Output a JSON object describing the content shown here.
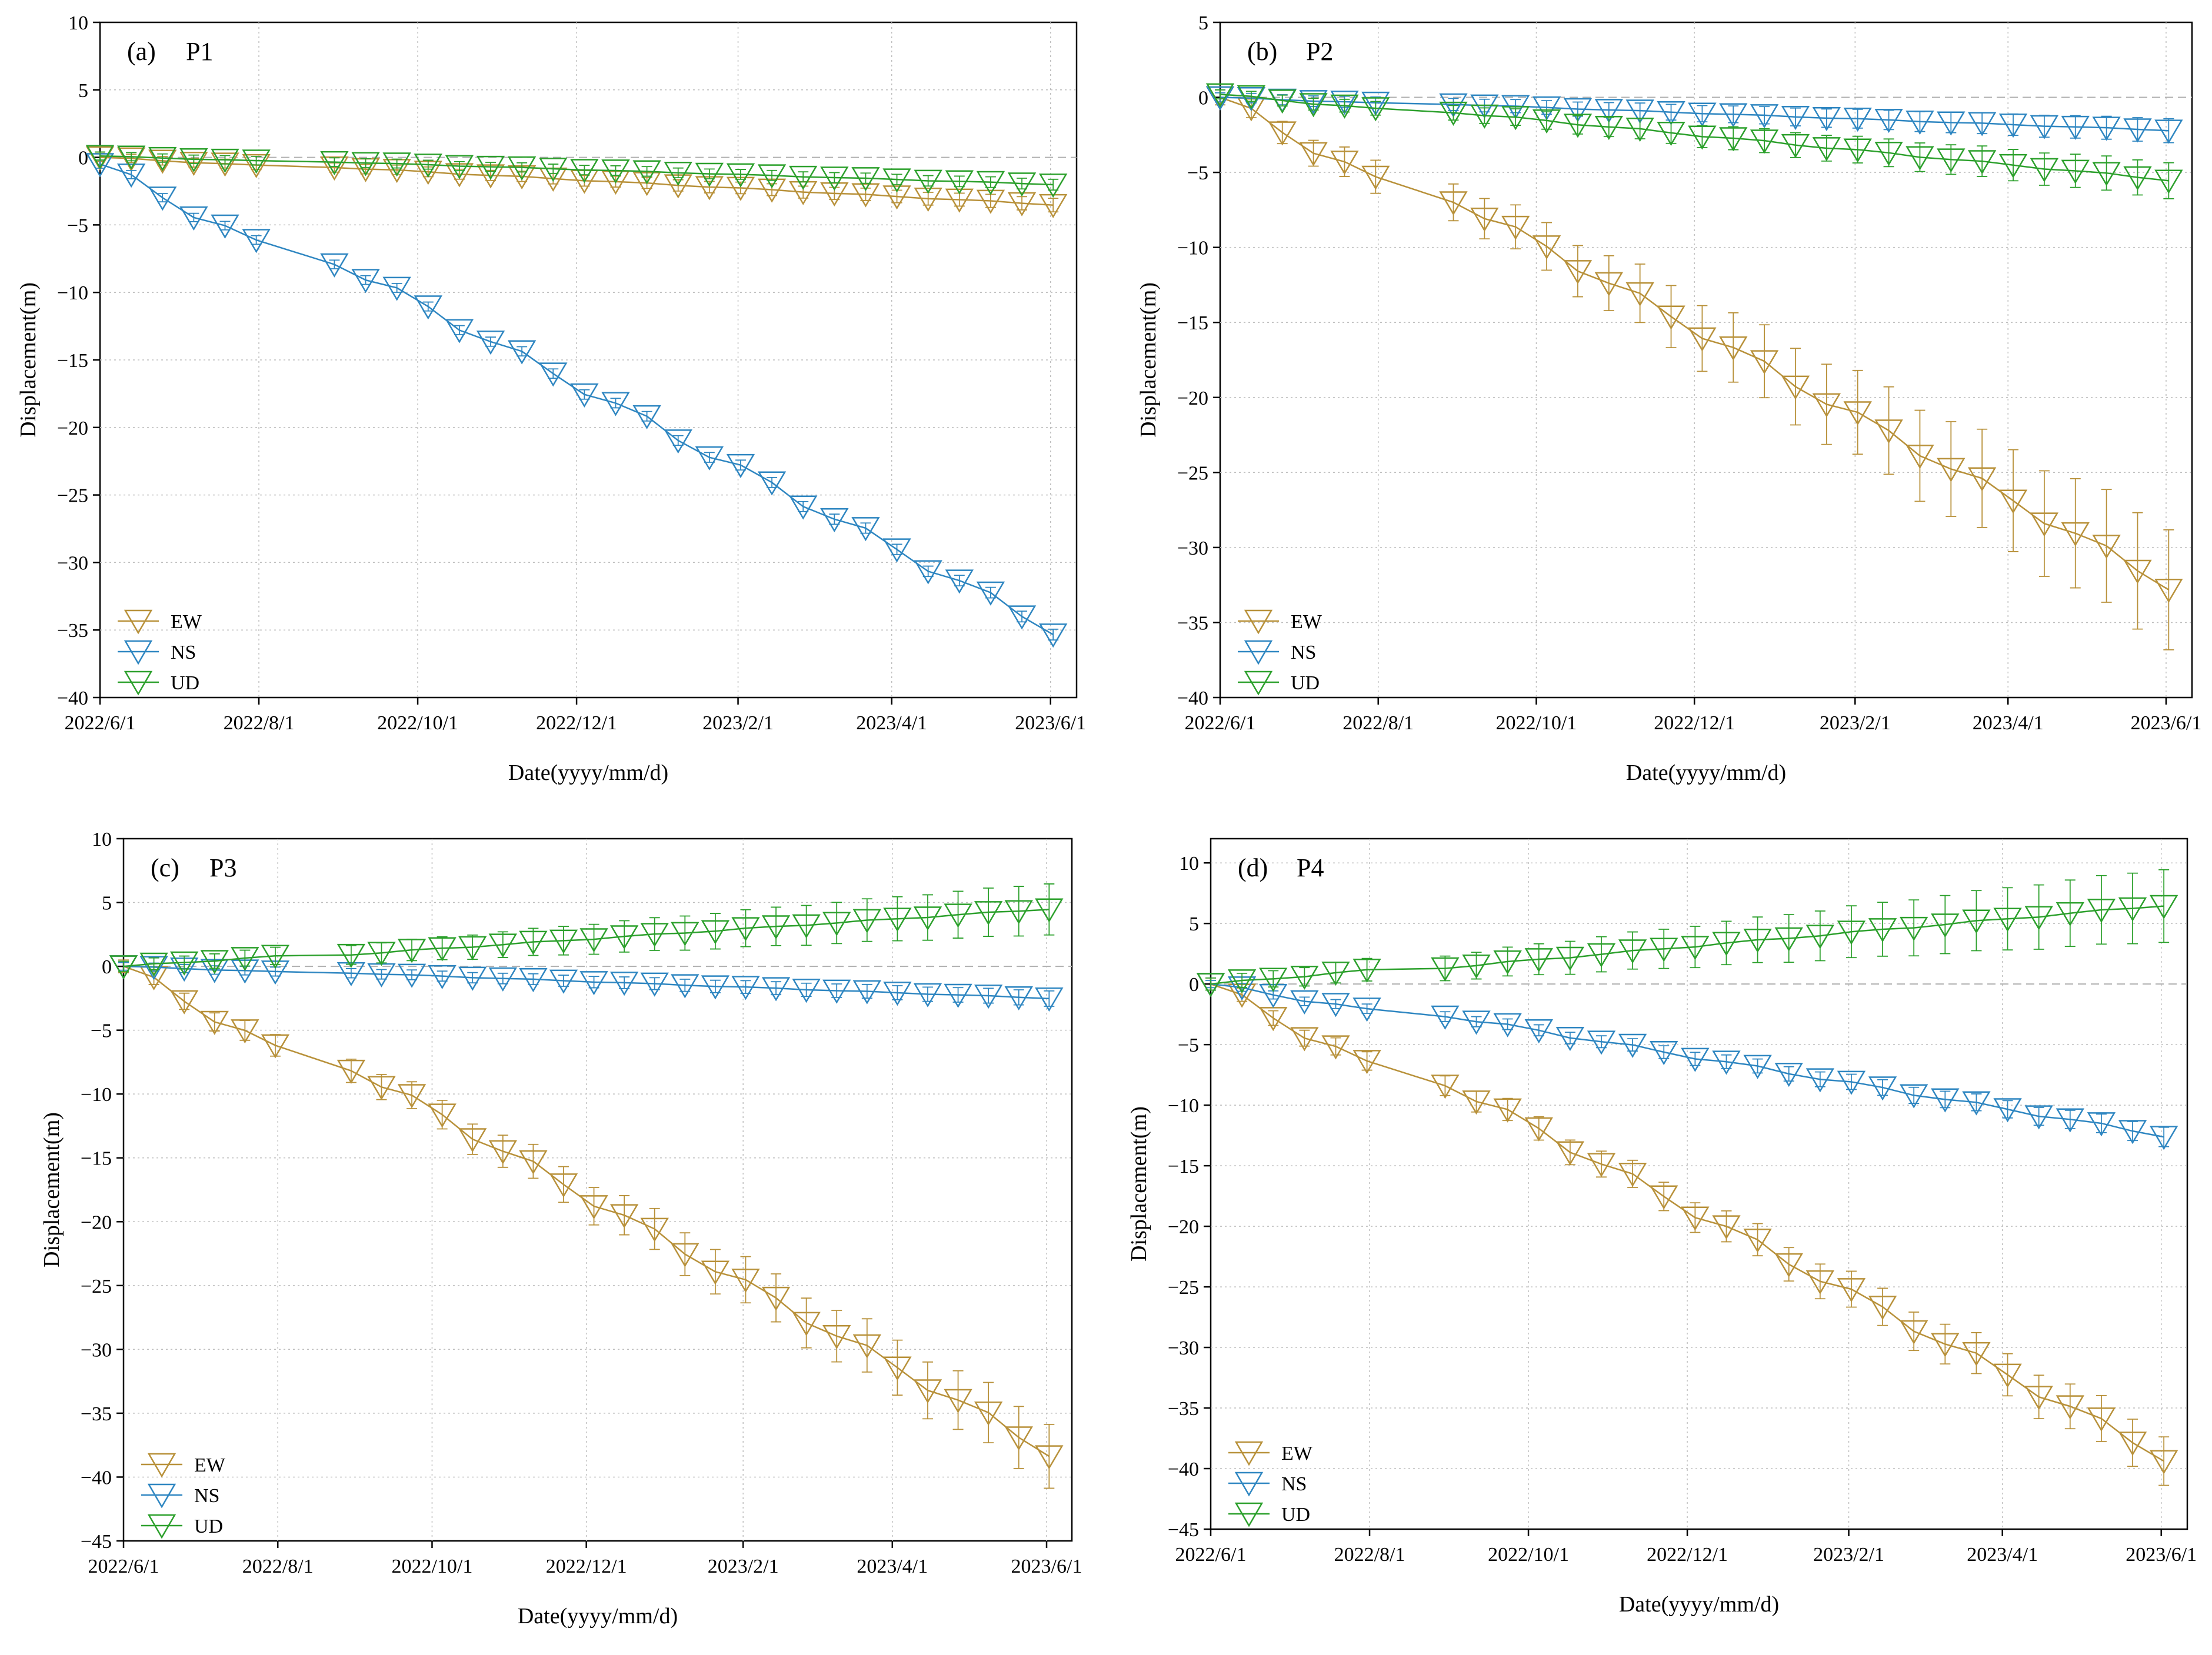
{
  "colors": {
    "EW": "#b8913a",
    "NS": "#2e86c1",
    "UD": "#2ca02c",
    "zero_line": "#b0b0b0",
    "grid": "#bfbfbf"
  },
  "chart_data": [
    {
      "type": "line",
      "panel": "(a)",
      "title": "P1",
      "xlabel": "Date(yyyy/mm/d)",
      "ylabel": "Displacement(m)",
      "x_ticks": [
        "2022/6/1",
        "2022/8/1",
        "2022/10/1",
        "2022/12/1",
        "2023/2/1",
        "2023/4/1",
        "2023/6/1"
      ],
      "ylim": [
        -40,
        10
      ],
      "y_ticks": [
        10,
        5,
        0,
        -5,
        -10,
        -15,
        -20,
        -25,
        -30,
        -35,
        -40
      ],
      "grid": true,
      "legend": "bottom-left",
      "series": [
        {
          "name": "EW",
          "start": 0,
          "end": -3.5,
          "err": [
            0.3,
            0.5
          ]
        },
        {
          "name": "NS",
          "start": -0.5,
          "end": -35,
          "err": [
            0.3,
            0.4
          ]
        },
        {
          "name": "UD",
          "start": 0.1,
          "end": -2.0,
          "err": [
            0.3,
            0.4
          ]
        }
      ]
    },
    {
      "type": "line",
      "panel": "(b)",
      "title": "P2",
      "xlabel": "Date(yyyy/mm/d)",
      "ylabel": "Displacement(m)",
      "x_ticks": [
        "2022/6/1",
        "2022/8/1",
        "2022/10/1",
        "2022/12/1",
        "2023/2/1",
        "2023/4/1",
        "2023/6/1"
      ],
      "ylim": [
        -40,
        5
      ],
      "y_ticks": [
        5,
        0,
        -5,
        -10,
        -15,
        -20,
        -25,
        -30,
        -35,
        -40
      ],
      "grid": true,
      "legend": "bottom-left",
      "series": [
        {
          "name": "EW",
          "start": 0,
          "end": -32.5,
          "err": [
            0.5,
            4.0
          ]
        },
        {
          "name": "NS",
          "start": 0,
          "end": -2.2,
          "err": [
            0.3,
            0.8
          ]
        },
        {
          "name": "UD",
          "start": 0.2,
          "end": -5.5,
          "err": [
            0.3,
            1.2
          ]
        }
      ]
    },
    {
      "type": "line",
      "panel": "(c)",
      "title": "P3",
      "xlabel": "Date(yyyy/mm/d)",
      "ylabel": "Displacement(m)",
      "x_ticks": [
        "2022/6/1",
        "2022/8/1",
        "2022/10/1",
        "2022/12/1",
        "2023/2/1",
        "2023/4/1",
        "2023/6/1"
      ],
      "ylim": [
        -45,
        10
      ],
      "y_ticks": [
        10,
        5,
        0,
        -5,
        -10,
        -15,
        -20,
        -25,
        -30,
        -35,
        -40,
        -45
      ],
      "grid": true,
      "legend": "bottom-left",
      "series": [
        {
          "name": "EW",
          "start": 0,
          "end": -38,
          "err": [
            0.5,
            2.5
          ]
        },
        {
          "name": "NS",
          "start": 0,
          "end": -2.5,
          "err": [
            0.3,
            0.6
          ]
        },
        {
          "name": "UD",
          "start": 0,
          "end": 4.5,
          "err": [
            0.4,
            2.0
          ]
        }
      ]
    },
    {
      "type": "line",
      "panel": "(d)",
      "title": "P4",
      "xlabel": "Date(yyyy/mm/d)",
      "ylabel": "Displacement(m)",
      "x_ticks": [
        "2022/6/1",
        "2022/8/1",
        "2022/10/1",
        "2022/12/1",
        "2023/2/1",
        "2023/4/1",
        "2023/6/1"
      ],
      "ylim": [
        -45,
        12
      ],
      "y_ticks": [
        10,
        5,
        0,
        -5,
        -10,
        -15,
        -20,
        -25,
        -30,
        -35,
        -40,
        -45
      ],
      "grid": true,
      "legend": "bottom-left",
      "series": [
        {
          "name": "EW",
          "start": 0,
          "end": -39,
          "err": [
            0.5,
            2.0
          ]
        },
        {
          "name": "NS",
          "start": 0,
          "end": -12.5,
          "err": [
            0.3,
            0.8
          ]
        },
        {
          "name": "UD",
          "start": 0,
          "end": 6.5,
          "err": [
            0.5,
            3.0
          ]
        }
      ]
    }
  ]
}
